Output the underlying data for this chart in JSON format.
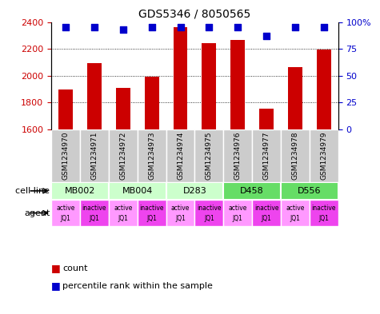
{
  "title": "GDS5346 / 8050565",
  "samples": [
    "GSM1234970",
    "GSM1234971",
    "GSM1234972",
    "GSM1234973",
    "GSM1234974",
    "GSM1234975",
    "GSM1234976",
    "GSM1234977",
    "GSM1234978",
    "GSM1234979"
  ],
  "counts": [
    1900,
    2095,
    1910,
    1990,
    2360,
    2245,
    2265,
    1755,
    2065,
    2195
  ],
  "percentiles": [
    95,
    95,
    93,
    95,
    95,
    95,
    95,
    87,
    95,
    95
  ],
  "ylim": [
    1600,
    2400
  ],
  "yticks": [
    1600,
    1800,
    2000,
    2200,
    2400
  ],
  "right_yticks": [
    0,
    25,
    50,
    75,
    100
  ],
  "right_ylim": [
    0,
    100
  ],
  "bar_color": "#cc0000",
  "dot_color": "#0000cc",
  "sample_bg_color": "#cccccc",
  "cell_lines": [
    {
      "label": "MB002",
      "span": [
        0,
        2
      ],
      "color": "#ccffcc"
    },
    {
      "label": "MB004",
      "span": [
        2,
        4
      ],
      "color": "#ccffcc"
    },
    {
      "label": "D283",
      "span": [
        4,
        6
      ],
      "color": "#ccffcc"
    },
    {
      "label": "D458",
      "span": [
        6,
        8
      ],
      "color": "#66dd66"
    },
    {
      "label": "D556",
      "span": [
        8,
        10
      ],
      "color": "#66dd66"
    }
  ],
  "agents": [
    {
      "label": "active\nJQ1",
      "color": "#ff99ff"
    },
    {
      "label": "inactive\nJQ1",
      "color": "#ee44ee"
    },
    {
      "label": "active\nJQ1",
      "color": "#ff99ff"
    },
    {
      "label": "inactive\nJQ1",
      "color": "#ee44ee"
    },
    {
      "label": "active\nJQ1",
      "color": "#ff99ff"
    },
    {
      "label": "inactive\nJQ1",
      "color": "#ee44ee"
    },
    {
      "label": "active\nJQ1",
      "color": "#ff99ff"
    },
    {
      "label": "inactive\nJQ1",
      "color": "#ee44ee"
    },
    {
      "label": "active\nJQ1",
      "color": "#ff99ff"
    },
    {
      "label": "inactive\nJQ1",
      "color": "#ee44ee"
    }
  ],
  "legend_count_color": "#cc0000",
  "legend_pct_color": "#0000cc",
  "background_color": "#ffffff",
  "cell_line_label": "cell line",
  "agent_label": "agent"
}
